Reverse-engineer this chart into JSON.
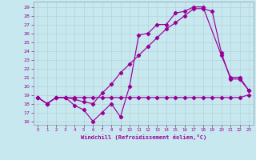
{
  "background_color": "#c8e8f0",
  "line_color": "#990099",
  "xlabel": "Windchill (Refroidissement éolien,°C)",
  "xlim_min": -0.5,
  "xlim_max": 23.5,
  "ylim_min": 15.6,
  "ylim_max": 29.6,
  "xticks": [
    0,
    1,
    2,
    3,
    4,
    5,
    6,
    7,
    8,
    9,
    10,
    11,
    12,
    13,
    14,
    15,
    16,
    17,
    18,
    19,
    20,
    21,
    22,
    23
  ],
  "yticks": [
    16,
    17,
    18,
    19,
    20,
    21,
    22,
    23,
    24,
    25,
    26,
    27,
    28,
    29
  ],
  "line1_x": [
    0,
    1,
    2,
    3,
    4,
    5,
    6,
    7,
    8,
    9,
    10,
    11,
    12,
    13,
    14,
    15,
    16,
    17,
    18,
    19,
    20,
    21,
    22,
    23
  ],
  "line1_y": [
    18.7,
    18.0,
    18.7,
    18.7,
    18.7,
    18.7,
    18.7,
    18.7,
    18.7,
    18.7,
    18.7,
    18.7,
    18.7,
    18.7,
    18.7,
    18.7,
    18.7,
    18.7,
    18.7,
    18.7,
    18.7,
    18.7,
    18.7,
    19.0
  ],
  "line2_x": [
    0,
    1,
    2,
    3,
    4,
    5,
    6,
    7,
    8,
    9,
    10,
    11,
    12,
    13,
    14,
    15,
    16,
    17,
    18,
    20,
    21,
    22,
    23
  ],
  "line2_y": [
    18.7,
    18.0,
    18.7,
    18.7,
    17.8,
    17.3,
    16.0,
    17.0,
    18.0,
    16.5,
    20.0,
    25.8,
    26.0,
    27.0,
    27.0,
    28.3,
    28.5,
    29.0,
    29.0,
    23.5,
    21.0,
    21.0,
    19.5
  ],
  "line3_x": [
    0,
    1,
    2,
    3,
    4,
    5,
    6,
    7,
    8,
    9,
    10,
    11,
    12,
    13,
    14,
    15,
    16,
    17,
    18,
    19,
    20,
    21,
    22,
    23
  ],
  "line3_y": [
    18.7,
    18.0,
    18.7,
    18.7,
    18.5,
    18.2,
    18.0,
    19.2,
    20.2,
    21.5,
    22.5,
    23.5,
    24.5,
    25.5,
    26.5,
    27.2,
    28.0,
    28.8,
    28.8,
    28.5,
    23.8,
    20.8,
    20.8,
    19.5
  ]
}
